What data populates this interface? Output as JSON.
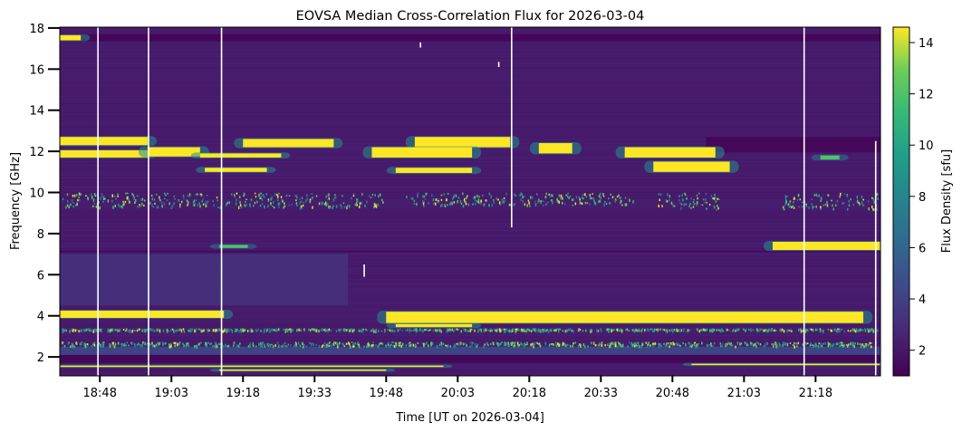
{
  "chart_data": {
    "type": "heatmap",
    "title": "EOVSA Median Cross-Correlation Flux for 2026-03-04",
    "xlabel": "Time [UT on 2026-03-04]",
    "ylabel": "Frequency [GHz]",
    "colorbar_label": "Flux Density [sfu]",
    "colormap": "viridis",
    "xlim": [
      "18:39.6",
      "21:31.6"
    ],
    "ylim": [
      1.08,
      18.04
    ],
    "clim": [
      1.0,
      14.6
    ],
    "x_ticks": [
      "18:48",
      "19:03",
      "19:18",
      "19:33",
      "19:48",
      "20:03",
      "20:18",
      "20:33",
      "20:48",
      "21:03",
      "21:18"
    ],
    "y_ticks": [
      2,
      4,
      6,
      8,
      10,
      12,
      14,
      16,
      18
    ],
    "colorbar_ticks": [
      2,
      4,
      6,
      8,
      10,
      12,
      14
    ],
    "background_flux": 2.2,
    "bright_bands": [
      {
        "t_start": "18:39.6",
        "t_end": "18:44",
        "f_low": 17.4,
        "f_high": 17.65,
        "flux": 14.6
      },
      {
        "t_start": "18:39.6",
        "t_end": "18:58",
        "f_low": 12.3,
        "f_high": 12.7,
        "flux": 14.6
      },
      {
        "t_start": "18:39.6",
        "t_end": "18:58",
        "f_low": 11.7,
        "f_high": 12.05,
        "flux": 14.6
      },
      {
        "t_start": "18:58",
        "t_end": "19:09",
        "f_low": 11.75,
        "f_high": 12.2,
        "flux": 14.6
      },
      {
        "t_start": "19:09",
        "t_end": "19:26",
        "f_low": 11.7,
        "f_high": 11.9,
        "flux": 14.6
      },
      {
        "t_start": "19:18",
        "t_end": "19:37",
        "f_low": 12.2,
        "f_high": 12.6,
        "flux": 14.6
      },
      {
        "t_start": "19:10",
        "t_end": "19:23",
        "f_low": 11.0,
        "f_high": 11.2,
        "flux": 14.6
      },
      {
        "t_start": "19:54",
        "t_end": "20:14",
        "f_low": 12.2,
        "f_high": 12.7,
        "flux": 14.6
      },
      {
        "t_start": "19:45",
        "t_end": "20:06",
        "f_low": 11.7,
        "f_high": 12.2,
        "flux": 14.6
      },
      {
        "t_start": "19:50",
        "t_end": "20:06",
        "f_low": 10.95,
        "f_high": 11.2,
        "flux": 14.6
      },
      {
        "t_start": "20:20",
        "t_end": "20:27",
        "f_low": 11.9,
        "f_high": 12.4,
        "flux": 14.6
      },
      {
        "t_start": "20:38",
        "t_end": "20:57",
        "f_low": 11.7,
        "f_high": 12.2,
        "flux": 14.6
      },
      {
        "t_start": "20:44",
        "t_end": "21:00",
        "f_low": 11.0,
        "f_high": 11.5,
        "flux": 14.6
      },
      {
        "t_start": "21:19",
        "t_end": "21:23",
        "f_low": 11.6,
        "f_high": 11.8,
        "flux": 12.0
      },
      {
        "t_start": "21:09",
        "t_end": "21:31.6",
        "f_low": 7.2,
        "f_high": 7.6,
        "flux": 14.6
      },
      {
        "t_start": "19:13",
        "t_end": "19:19",
        "f_low": 7.3,
        "f_high": 7.45,
        "flux": 12.0
      },
      {
        "t_start": "18:39.6",
        "t_end": "19:14",
        "f_low": 3.9,
        "f_high": 4.25,
        "flux": 14.6
      },
      {
        "t_start": "19:48",
        "t_end": "21:28",
        "f_low": 3.65,
        "f_high": 4.2,
        "flux": 14.6
      },
      {
        "t_start": "19:50",
        "t_end": "20:06",
        "f_low": 3.45,
        "f_high": 3.6,
        "flux": 14.6
      },
      {
        "t_start": "18:39.6",
        "t_end": "20:00",
        "f_low": 1.52,
        "f_high": 1.58,
        "flux": 14.6
      },
      {
        "t_start": "19:13",
        "t_end": "19:48",
        "f_low": 1.33,
        "f_high": 1.39,
        "flux": 14.6
      },
      {
        "t_start": "20:52",
        "t_end": "21:31.6",
        "f_low": 1.62,
        "f_high": 1.67,
        "flux": 14.6
      }
    ],
    "dim_bands": [
      {
        "t_start": "18:39.6",
        "t_end": "21:31.6",
        "f_low": 17.35,
        "f_high": 17.7,
        "flux": 1.1
      },
      {
        "t_start": "20:55",
        "t_end": "21:31.6",
        "f_low": 11.95,
        "f_high": 12.7,
        "flux": 1.1
      },
      {
        "t_start": "18:39.6",
        "t_end": "21:31.6",
        "f_low": 1.7,
        "f_high": 2.1,
        "flux": 1.2
      },
      {
        "t_start": "18:39.6",
        "t_end": "21:31.6",
        "f_low": 7.1,
        "f_high": 7.18,
        "flux": 1.2
      },
      {
        "t_start": "18:39.6",
        "t_end": "21:31.6",
        "f_low": 2.1,
        "f_high": 2.5,
        "flux": 4.5
      },
      {
        "t_start": "18:39.6",
        "t_end": "19:40",
        "f_low": 4.5,
        "f_high": 7.0,
        "flux": 3.3
      }
    ],
    "speckle_regions": [
      {
        "t_start": "18:40",
        "t_end": "19:48",
        "f_low": 9.3,
        "f_high": 10.0
      },
      {
        "t_start": "19:52",
        "t_end": "20:40",
        "f_low": 9.4,
        "f_high": 10.0
      },
      {
        "t_start": "20:45",
        "t_end": "20:58",
        "f_low": 9.2,
        "f_high": 10.0
      },
      {
        "t_start": "21:11",
        "t_end": "21:31",
        "f_low": 9.2,
        "f_high": 10.0
      },
      {
        "t_start": "18:40",
        "t_end": "21:31",
        "f_low": 2.55,
        "f_high": 2.75
      },
      {
        "t_start": "18:40",
        "t_end": "21:31",
        "f_low": 3.3,
        "f_high": 3.4
      }
    ],
    "data_gaps": [
      {
        "t": "18:47.6",
        "f_low": 1.08,
        "f_high": 18.04
      },
      {
        "t": "18:58.2",
        "f_low": 1.08,
        "f_high": 18.04
      },
      {
        "t": "19:13.5",
        "f_low": 1.08,
        "f_high": 18.04
      },
      {
        "t": "20:14.3",
        "f_low": 8.3,
        "f_high": 18.04
      },
      {
        "t": "21:15.6",
        "f_low": 1.08,
        "f_high": 18.04
      },
      {
        "t": "21:30.6",
        "f_low": 1.08,
        "f_high": 12.5
      },
      {
        "t": "19:55.2",
        "f_low": 17.05,
        "f_high": 17.3
      },
      {
        "t": "20:11.6",
        "f_low": 16.1,
        "f_high": 16.35
      },
      {
        "t": "19:43.4",
        "f_low": 5.9,
        "f_high": 6.5
      }
    ]
  }
}
